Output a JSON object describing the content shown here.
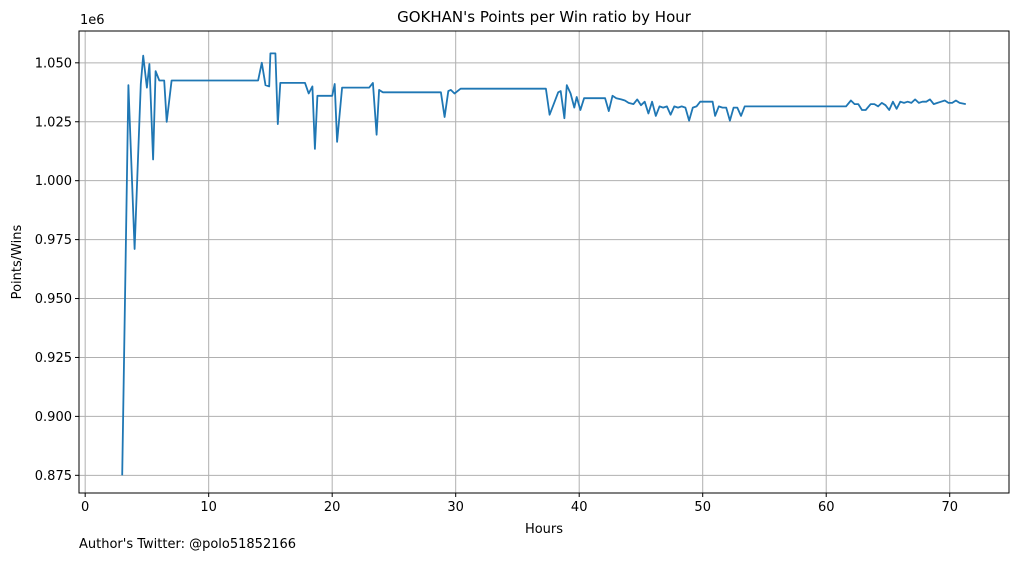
{
  "chart_data": {
    "type": "line",
    "title": "GOKHAN's Points per Win ratio by Hour",
    "xlabel": "Hours",
    "ylabel": "Points/Wins",
    "y_multiplier_label": "1e6",
    "xlim": [
      -0.5,
      74.8
    ],
    "ylim": [
      0.8675,
      1.0635
    ],
    "grid": true,
    "line_color": "#1f77b4",
    "x_ticks": [
      0,
      10,
      20,
      30,
      40,
      50,
      60,
      70
    ],
    "x_tick_labels": [
      "0",
      "10",
      "20",
      "30",
      "40",
      "50",
      "60",
      "70"
    ],
    "y_ticks": [
      0.875,
      0.9,
      0.925,
      0.95,
      0.975,
      1.0,
      1.025,
      1.05
    ],
    "y_tick_labels": [
      "0.875",
      "0.900",
      "0.925",
      "0.950",
      "0.975",
      "1.000",
      "1.025",
      "1.050"
    ],
    "series": [
      {
        "x": [
          3.0,
          3.5,
          4.0,
          4.5,
          4.7,
          5.0,
          5.2,
          5.5,
          5.7,
          6.0,
          6.4,
          6.6,
          7.0,
          14.0,
          14.3,
          14.6,
          14.9,
          15.0,
          15.4,
          15.6,
          15.8,
          17.8,
          18.1,
          18.4,
          18.6,
          18.8,
          20.0,
          20.2,
          20.4,
          20.8,
          23.0,
          23.3,
          23.6,
          23.8,
          24.1,
          28.8,
          29.1,
          29.4,
          29.6,
          29.9,
          30.4,
          31.0,
          37.3,
          37.6,
          37.9,
          38.3,
          38.5,
          38.8,
          39.0,
          39.3,
          39.6,
          39.8,
          40.1,
          40.4,
          42.1,
          42.4,
          42.7,
          43.0,
          43.4,
          43.7,
          44.0,
          44.4,
          44.7,
          45.0,
          45.3,
          45.6,
          45.9,
          46.2,
          46.5,
          46.8,
          47.1,
          47.4,
          47.7,
          48.0,
          48.3,
          48.6,
          48.9,
          49.2,
          49.5,
          49.8,
          50.8,
          51.0,
          51.3,
          51.6,
          51.9,
          52.2,
          52.5,
          52.8,
          53.1,
          53.4,
          61.6,
          62.0,
          62.3,
          62.6,
          62.9,
          63.2,
          63.6,
          63.9,
          64.2,
          64.5,
          64.8,
          65.1,
          65.4,
          65.7,
          66.0,
          66.3,
          66.6,
          66.9,
          67.2,
          67.5,
          67.8,
          68.1,
          68.4,
          68.7,
          69.0,
          69.3,
          69.6,
          69.9,
          70.2,
          70.5,
          70.8,
          71.3
        ],
        "y": [
          0.875,
          1.0405,
          0.971,
          1.041,
          1.053,
          1.0395,
          1.0495,
          1.009,
          1.0465,
          1.0425,
          1.0425,
          1.025,
          1.0425,
          1.0425,
          1.05,
          1.0405,
          1.04,
          1.054,
          1.054,
          1.024,
          1.0415,
          1.0415,
          1.037,
          1.04,
          1.0135,
          1.036,
          1.036,
          1.041,
          1.0165,
          1.0395,
          1.0395,
          1.0415,
          1.0195,
          1.0385,
          1.0375,
          1.0375,
          1.027,
          1.038,
          1.0385,
          1.037,
          1.039,
          1.039,
          1.039,
          1.028,
          1.032,
          1.0375,
          1.038,
          1.0265,
          1.0405,
          1.037,
          1.031,
          1.0355,
          1.03,
          1.035,
          1.035,
          1.0295,
          1.036,
          1.035,
          1.0345,
          1.034,
          1.033,
          1.0325,
          1.0345,
          1.032,
          1.0335,
          1.0285,
          1.0335,
          1.0275,
          1.0315,
          1.031,
          1.0315,
          1.028,
          1.0315,
          1.031,
          1.0315,
          1.031,
          1.0255,
          1.031,
          1.0315,
          1.0335,
          1.0335,
          1.0275,
          1.0315,
          1.031,
          1.031,
          1.0255,
          1.031,
          1.031,
          1.0275,
          1.0315,
          1.0315,
          1.034,
          1.0325,
          1.0325,
          1.03,
          1.03,
          1.0325,
          1.0325,
          1.0315,
          1.033,
          1.032,
          1.03,
          1.0335,
          1.0305,
          1.0335,
          1.033,
          1.0335,
          1.033,
          1.0345,
          1.033,
          1.0335,
          1.0335,
          1.0345,
          1.0325,
          1.033,
          1.0335,
          1.034,
          1.033,
          1.033,
          1.034,
          1.033,
          1.0325
        ]
      }
    ]
  },
  "footer": {
    "note": "Author's Twitter: @polo51852166"
  }
}
